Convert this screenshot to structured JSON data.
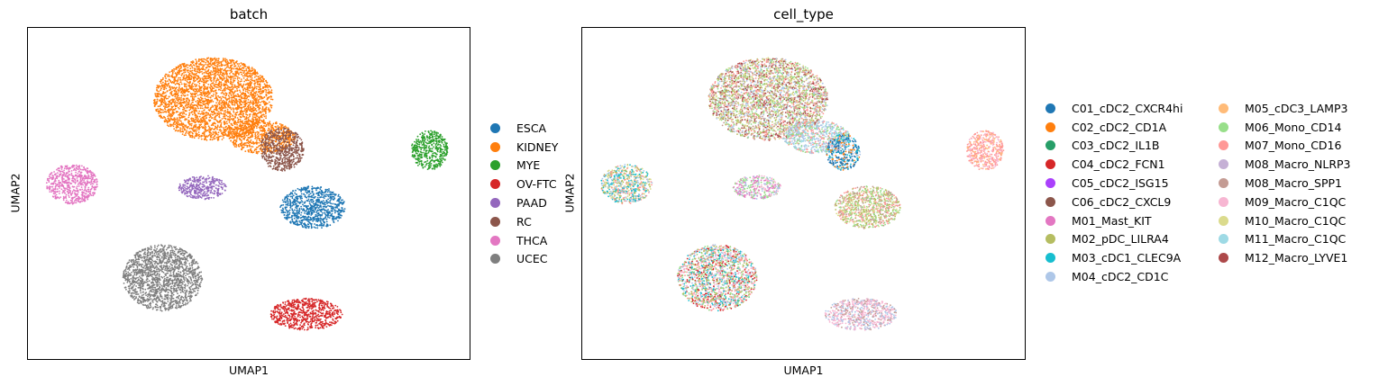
{
  "chart_data": [
    {
      "type": "scatter",
      "title": "batch",
      "xlabel": "UMAP1",
      "ylabel": "UMAP2",
      "grid": false,
      "legend_position": "right",
      "xlim": [
        0,
        100
      ],
      "ylim": [
        0,
        100
      ],
      "series": [
        {
          "name": "ESCA",
          "color": "#1f77b4",
          "clusters": [
            {
              "cx": 64.5,
              "cy": 45.8,
              "rx": 7.4,
              "ry": 6.4
            }
          ]
        },
        {
          "name": "KIDNEY",
          "color": "#ff7f0e",
          "clusters": [
            {
              "cx": 42.0,
              "cy": 78.5,
              "rx": 13.5,
              "ry": 12.5
            },
            {
              "cx": 53.0,
              "cy": 67.0,
              "rx": 7.5,
              "ry": 5.0
            }
          ]
        },
        {
          "name": "MYE",
          "color": "#2ca02c",
          "clusters": [
            {
              "cx": 91.0,
              "cy": 63.0,
              "rx": 4.2,
              "ry": 6.0
            }
          ]
        },
        {
          "name": "OV-FTC",
          "color": "#d62728",
          "clusters": [
            {
              "cx": 63.0,
              "cy": 13.5,
              "rx": 8.2,
              "ry": 4.8
            }
          ]
        },
        {
          "name": "PAAD",
          "color": "#9467bd",
          "clusters": [
            {
              "cx": 39.5,
              "cy": 51.8,
              "rx": 5.4,
              "ry": 3.6
            }
          ]
        },
        {
          "name": "RC",
          "color": "#8c564b",
          "clusters": [
            {
              "cx": 57.5,
              "cy": 63.3,
              "rx": 5.0,
              "ry": 6.5
            }
          ]
        },
        {
          "name": "THCA",
          "color": "#e377c2",
          "clusters": [
            {
              "cx": 10.0,
              "cy": 52.8,
              "rx": 5.8,
              "ry": 6.0
            }
          ]
        },
        {
          "name": "UCEC",
          "color": "#7f7f7f",
          "clusters": [
            {
              "cx": 30.5,
              "cy": 24.5,
              "rx": 9.0,
              "ry": 10.0
            }
          ]
        }
      ]
    },
    {
      "type": "scatter",
      "title": "cell_type",
      "xlabel": "UMAP1",
      "ylabel": "UMAP2",
      "grid": false,
      "legend_position": "right",
      "xlim": [
        0,
        100
      ],
      "ylim": [
        0,
        100
      ],
      "series": [
        {
          "name": "C01_cDC2_CXCR4hi",
          "color": "#1f77b4"
        },
        {
          "name": "C02_cDC2_CD1A",
          "color": "#ff7f0e"
        },
        {
          "name": "C03_cDC2_IL1B",
          "color": "#279e68"
        },
        {
          "name": "C04_cDC2_FCN1",
          "color": "#d62728"
        },
        {
          "name": "C05_cDC2_ISG15",
          "color": "#aa40fc"
        },
        {
          "name": "C06_cDC2_CXCL9",
          "color": "#8c564b"
        },
        {
          "name": "M01_Mast_KIT",
          "color": "#e377c2"
        },
        {
          "name": "M02_pDC_LILRA4",
          "color": "#b5bd61"
        },
        {
          "name": "M03_cDC1_CLEC9A",
          "color": "#17becf"
        },
        {
          "name": "M04_cDC2_CD1C",
          "color": "#aec7e8"
        },
        {
          "name": "M05_cDC3_LAMP3",
          "color": "#ffbb78"
        },
        {
          "name": "M06_Mono_CD14",
          "color": "#98df8a"
        },
        {
          "name": "M07_Mono_CD16",
          "color": "#ff9896"
        },
        {
          "name": "M08_Macro_NLRP3",
          "color": "#c5b0d5"
        },
        {
          "name": "M08_Macro_SPP1",
          "color": "#c49c94"
        },
        {
          "name": "M09_Macro_C1QC",
          "color": "#f7b6d2"
        },
        {
          "name": "M10_Macro_C1QC",
          "color": "#dbdb8d"
        },
        {
          "name": "M11_Macro_C1QC",
          "color": "#9edae5"
        },
        {
          "name": "M12_Macro_LYVE1",
          "color": "#ad494a"
        }
      ],
      "clusters": [
        {
          "cx": 42.0,
          "cy": 78.5,
          "rx": 13.5,
          "ry": 12.5,
          "mix": [
            "M07_Mono_CD16",
            "M08_Macro_SPP1",
            "M06_Mono_CD14",
            "M02_pDC_LILRA4",
            "M10_Macro_C1QC",
            "M12_Macro_LYVE1",
            "M04_cDC2_CD1C"
          ]
        },
        {
          "cx": 53.0,
          "cy": 67.0,
          "rx": 7.5,
          "ry": 5.0,
          "mix": [
            "M04_cDC2_CD1C",
            "M04_cDC2_CD1C",
            "M11_Macro_C1QC",
            "M06_Mono_CD14",
            "M07_Mono_CD16"
          ]
        },
        {
          "cx": 59.0,
          "cy": 62.5,
          "rx": 3.8,
          "ry": 5.5,
          "mix": [
            "C01_cDC2_CXCR4hi",
            "C01_cDC2_CXCR4hi",
            "M04_cDC2_CD1C",
            "C02_cDC2_CD1A",
            "M03_cDC1_CLEC9A"
          ]
        },
        {
          "cx": 91.0,
          "cy": 63.0,
          "rx": 4.2,
          "ry": 6.0,
          "mix": [
            "M07_Mono_CD16",
            "M07_Mono_CD16",
            "M09_Macro_C1QC",
            "M05_cDC3_LAMP3"
          ]
        },
        {
          "cx": 10.0,
          "cy": 52.8,
          "rx": 5.8,
          "ry": 6.0,
          "mix": [
            "M10_Macro_C1QC",
            "M02_pDC_LILRA4",
            "M03_cDC1_CLEC9A",
            "M07_Mono_CD16",
            "M04_cDC2_CD1C"
          ]
        },
        {
          "cx": 39.5,
          "cy": 51.8,
          "rx": 5.4,
          "ry": 3.6,
          "mix": [
            "M09_Macro_C1QC",
            "M01_Mast_KIT",
            "M04_cDC2_CD1C",
            "M06_Mono_CD14"
          ]
        },
        {
          "cx": 64.5,
          "cy": 45.8,
          "rx": 7.4,
          "ry": 6.4,
          "mix": [
            "M02_pDC_LILRA4",
            "M06_Mono_CD14",
            "M10_Macro_C1QC",
            "M07_Mono_CD16",
            "M08_Macro_SPP1"
          ]
        },
        {
          "cx": 30.5,
          "cy": 24.5,
          "rx": 9.0,
          "ry": 10.0,
          "mix": [
            "M07_Mono_CD16",
            "M06_Mono_CD14",
            "M03_cDC1_CLEC9A",
            "M02_pDC_LILRA4",
            "C04_cDC2_FCN1",
            "M04_cDC2_CD1C",
            "M09_Macro_C1QC"
          ]
        },
        {
          "cx": 63.0,
          "cy": 13.5,
          "rx": 8.2,
          "ry": 4.8,
          "mix": [
            "M09_Macro_C1QC",
            "M08_Macro_SPP1",
            "M09_Macro_C1QC",
            "M04_cDC2_CD1C"
          ]
        }
      ]
    }
  ]
}
